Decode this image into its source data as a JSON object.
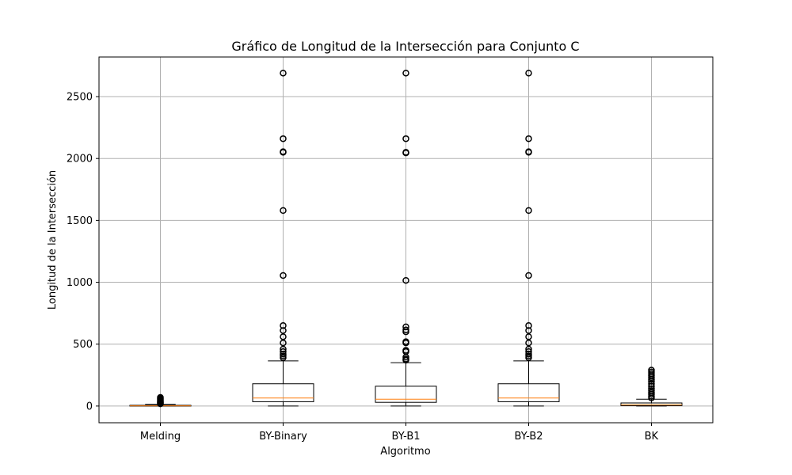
{
  "chart_data": {
    "type": "box",
    "title": "Gráfico de Longitud de la Intersección para Conjunto C",
    "xlabel": "Algoritmo",
    "ylabel": "Longitud de la Intersección",
    "categories": [
      "Melding",
      "BY-Binary",
      "BY-B1",
      "BY-B2",
      "BK"
    ],
    "ylim": [
      -135,
      2820
    ],
    "yticks": [
      0,
      500,
      1000,
      1500,
      2000,
      2500
    ],
    "grid": true,
    "boxes": [
      {
        "category": "Melding",
        "whisker_low": 0,
        "q1": 0,
        "median": 2,
        "q3": 6,
        "whisker_high": 14,
        "outliers": [
          18,
          24,
          30,
          36,
          42,
          48,
          55,
          62,
          70
        ]
      },
      {
        "category": "BY-Binary",
        "whisker_low": 0,
        "q1": 35,
        "median": 65,
        "q3": 180,
        "whisker_high": 365,
        "outliers": [
          390,
          405,
          420,
          440,
          460,
          510,
          560,
          610,
          650,
          1055,
          1580,
          2050,
          2055,
          2160,
          2690
        ]
      },
      {
        "category": "BY-B1",
        "whisker_low": 0,
        "q1": 30,
        "median": 55,
        "q3": 160,
        "whisker_high": 350,
        "outliers": [
          370,
          380,
          395,
          440,
          450,
          510,
          520,
          600,
          615,
          640,
          1015,
          2045,
          2050,
          2160,
          2690
        ]
      },
      {
        "category": "BY-B2",
        "whisker_low": 0,
        "q1": 35,
        "median": 65,
        "q3": 180,
        "whisker_high": 365,
        "outliers": [
          390,
          405,
          420,
          440,
          460,
          510,
          560,
          610,
          650,
          1055,
          1580,
          2050,
          2055,
          2160,
          2690
        ]
      },
      {
        "category": "BK",
        "whisker_low": 0,
        "q1": 3,
        "median": 10,
        "q3": 25,
        "whisker_high": 55,
        "outliers": [
          65,
          80,
          95,
          110,
          125,
          140,
          160,
          180,
          200,
          215,
          230,
          245,
          260,
          275,
          290
        ]
      }
    ],
    "colors": {
      "box": "#000000",
      "median": "#ff7f0e",
      "grid": "#b0b0b0",
      "outlier": "#000000"
    }
  }
}
